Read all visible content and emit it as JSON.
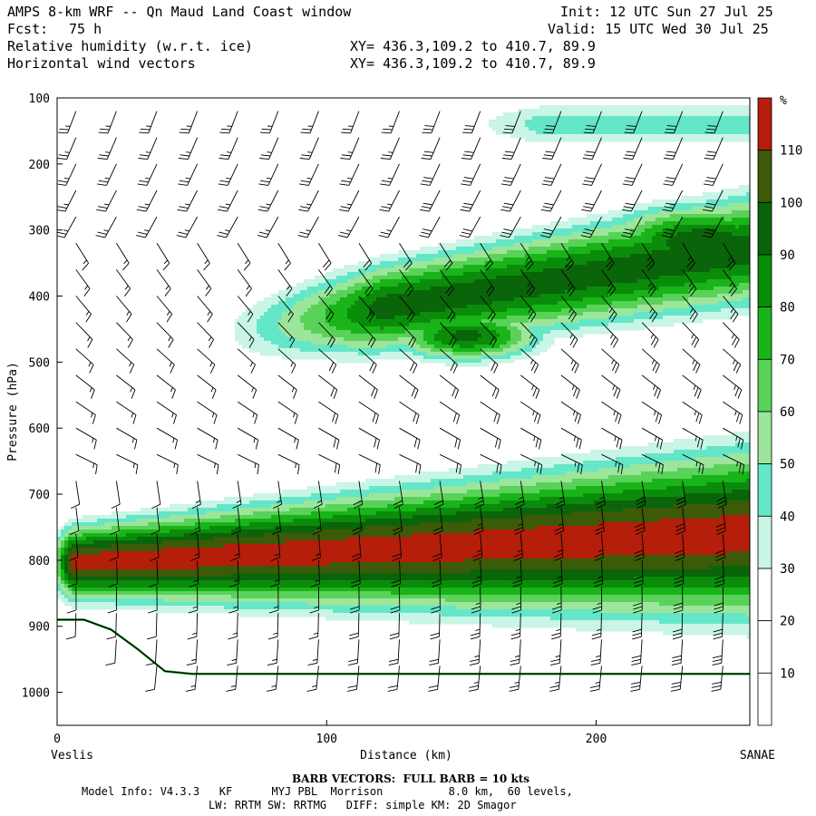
{
  "header": {
    "title": "AMPS 8-km WRF -- Qn Maud Land Coast window",
    "init": "Init: 12 UTC Sun 27 Jul 25",
    "fcst_label": "Fcst:",
    "fcst_value": "75 h",
    "valid": "Valid: 15 UTC Wed 30 Jul 25",
    "field1": "Relative humidity (w.r.t. ice)",
    "field2": "Horizontal wind vectors",
    "xy1": "XY= 436.3,109.2 to 410.7, 89.9",
    "xy2": "XY= 436.3,109.2 to 410.7, 89.9"
  },
  "chart_data": {
    "type": "heatmap",
    "ylabel": "Pressure (hPa)",
    "xlabel": "Distance (km)",
    "x_left_label": "Veslis",
    "x_right_label": "SANAE",
    "yticks": [
      100,
      200,
      300,
      400,
      500,
      600,
      700,
      800,
      900,
      1000
    ],
    "ytick_labels": [
      "100",
      "200",
      "300",
      "400",
      "500",
      "600",
      "700",
      "800",
      "900",
      "1000"
    ],
    "ylim": [
      100,
      1050
    ],
    "y_direction": "inverted",
    "xticks": [
      0,
      100,
      200
    ],
    "xtick_labels": [
      "0",
      "100",
      "200"
    ],
    "xlim": [
      0,
      257
    ],
    "colorbar": {
      "unit": "%",
      "levels": [
        10,
        20,
        30,
        40,
        50,
        60,
        70,
        80,
        90,
        100,
        110
      ],
      "level_labels": [
        "10",
        "20",
        "30",
        "40",
        "50",
        "60",
        "70",
        "80",
        "90",
        "100",
        "110"
      ],
      "colors": [
        "#ffffff",
        "#ffffff",
        "#ffffff",
        "#c8f5e6",
        "#64e6c8",
        "#9be69b",
        "#5ad25a",
        "#19b419",
        "#0a8c0a",
        "#0a640a",
        "#3c5a08",
        "#b41e0a"
      ]
    },
    "rh_layers": [
      {
        "name": "upper-band",
        "x_from": 60,
        "x_to": 257,
        "p_center_start": 470,
        "p_center_end": 330,
        "rh_max": 95
      },
      {
        "name": "lower-band",
        "x_from": 0,
        "x_to": 257,
        "p_center_start": 805,
        "p_center_end": 760,
        "rh_max": 115
      },
      {
        "name": "tropopause-band",
        "x_from": 150,
        "x_to": 257,
        "p_center": 140,
        "rh_max": 45
      }
    ],
    "terrain_surface": [
      {
        "x": 0,
        "p": 890
      },
      {
        "x": 10,
        "p": 890
      },
      {
        "x": 20,
        "p": 905
      },
      {
        "x": 30,
        "p": 935
      },
      {
        "x": 40,
        "p": 968
      },
      {
        "x": 50,
        "p": 972
      },
      {
        "x": 257,
        "p": 972
      }
    ],
    "barb_columns_x": [
      7,
      22,
      37,
      52,
      67,
      82,
      97,
      112,
      127,
      142,
      157,
      172,
      187,
      202,
      217,
      232,
      247
    ],
    "barb_levels_p": [
      120,
      160,
      200,
      240,
      280,
      320,
      360,
      400,
      440,
      480,
      520,
      560,
      600,
      640,
      680,
      720,
      760,
      800,
      840,
      880,
      920,
      960,
      1000
    ]
  },
  "footer": {
    "barb_note": "BARB VECTORS:  FULL BARB = 10 kts",
    "model_info": "Model Info: V4.3.3   KF      MYJ PBL  Morrison          8.0 km,  60 levels,",
    "model_info2": "LW: RRTM SW: RRTMG   DIFF: simple KM: 2D Smagor"
  }
}
